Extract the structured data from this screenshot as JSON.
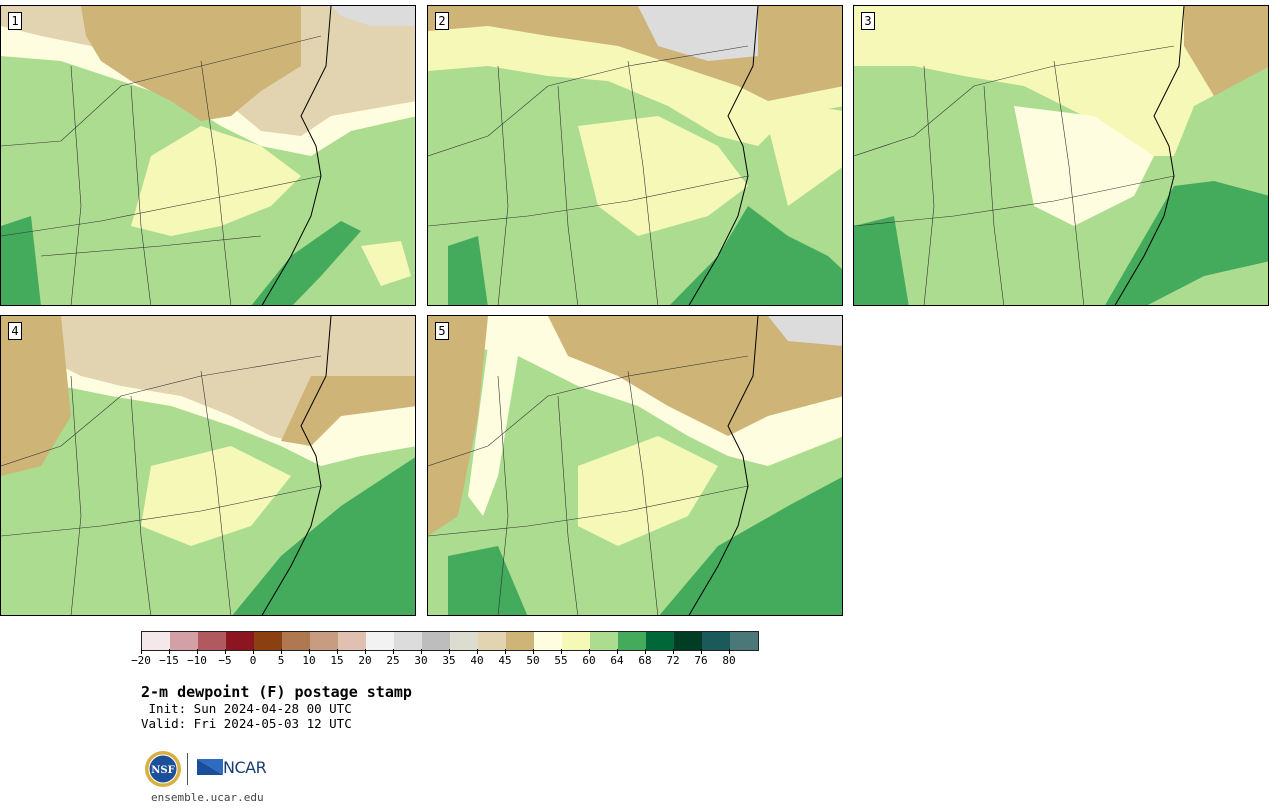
{
  "panels": [
    {
      "label": "1"
    },
    {
      "label": "2"
    },
    {
      "label": "3"
    },
    {
      "label": "4"
    },
    {
      "label": "5"
    }
  ],
  "colorbar": {
    "colors": [
      "#f4e8ea",
      "#d4a0a8",
      "#b05a60",
      "#8c1520",
      "#8a4010",
      "#b07850",
      "#c89c80",
      "#e0c0b0",
      "#f2f2f2",
      "#dcdcdc",
      "#bdbdbd",
      "#dcdccf",
      "#e2d4b0",
      "#cfb478",
      "#fffde0",
      "#f6f8b8",
      "#acdc90",
      "#44aa5c",
      "#006838",
      "#003d24",
      "#1a5a5a",
      "#4a7878"
    ],
    "tick_labels": [
      "−20",
      "−15",
      "−10",
      "−5",
      "0",
      "5",
      "10",
      "15",
      "20",
      "25",
      "30",
      "35",
      "40",
      "45",
      "50",
      "55",
      "60",
      "64",
      "68",
      "72",
      "76",
      "80"
    ]
  },
  "title": "2-m dewpoint (F) postage stamp",
  "init": " Init: Sun 2024-04-28 00 UTC",
  "valid": "Valid: Fri 2024-05-03 12 UTC",
  "logos": {
    "nsf_text": "NSF",
    "ncar_text": "NCAR"
  },
  "website": "ensemble.ucar.edu",
  "map_colors": {
    "tan_dark": "#cfb478",
    "tan_light": "#e2d4b0",
    "grey": "#dcdcdc",
    "cream": "#fffde0",
    "yellow": "#f6f8b8",
    "green_light": "#acdc90",
    "green_med": "#44aa5c"
  }
}
